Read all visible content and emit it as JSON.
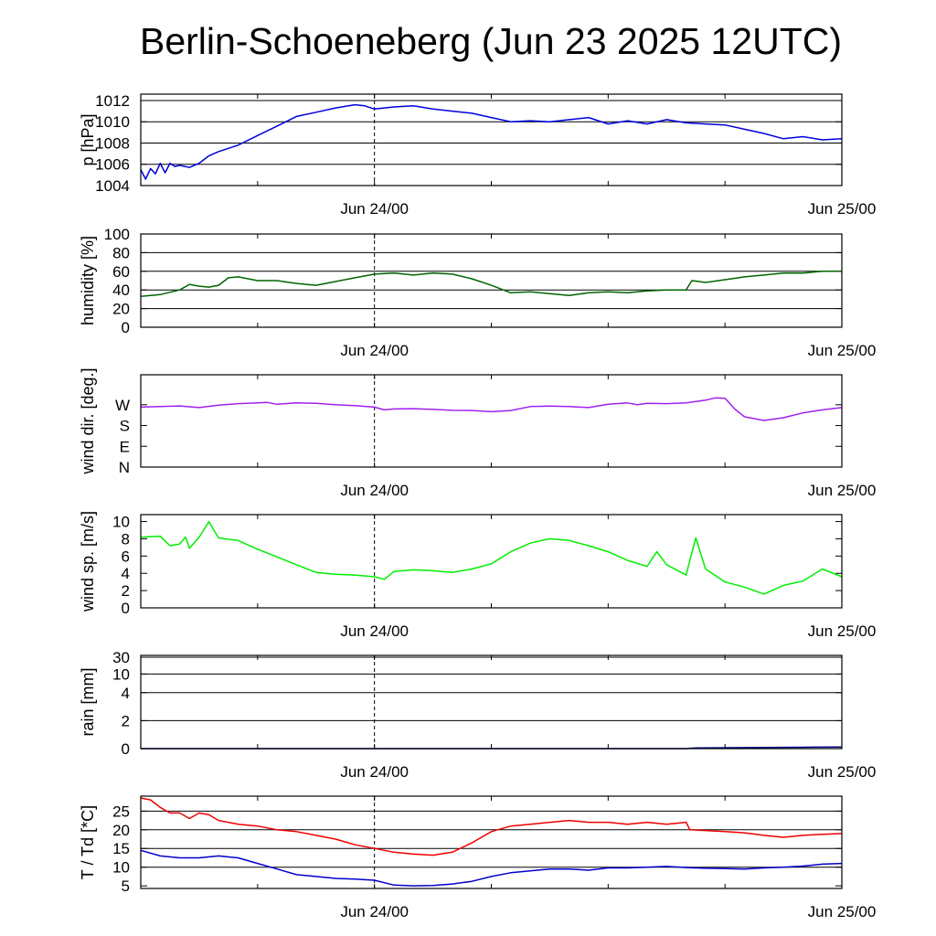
{
  "title": "Berlin-Schoeneberg (Jun 23 2025 12UTC)",
  "chart_data": [
    {
      "type": "line",
      "ylabel": "p [hPa]",
      "ylim": [
        1004,
        1012.6
      ],
      "yticks": [
        1004,
        1006,
        1008,
        1010,
        1012
      ],
      "ytick_labels": [
        "1004",
        "1006",
        "1008",
        "1010",
        "1012"
      ],
      "gridlines": [
        1006,
        1008,
        1010,
        1012
      ],
      "xlim": [
        0,
        36
      ],
      "xtick_labels": [
        {
          "x": 12,
          "label": "Jun 24/00"
        },
        {
          "x": 36,
          "label": "Jun 25/00"
        }
      ],
      "grid": true,
      "series": [
        {
          "color": "#0000dd",
          "x": [
            0,
            0.25,
            0.5,
            0.75,
            1,
            1.25,
            1.5,
            1.75,
            2,
            2.5,
            3,
            3.5,
            4,
            4.5,
            5,
            6,
            7,
            8,
            9,
            10,
            11,
            11.5,
            12,
            12.5,
            13,
            14,
            15,
            16,
            17,
            18,
            19,
            20,
            21,
            22,
            23,
            24,
            25,
            26,
            27,
            28,
            29,
            30,
            31,
            32,
            33,
            34,
            35,
            36
          ],
          "y": [
            1005.5,
            1004.6,
            1005.6,
            1005.1,
            1006.1,
            1005.2,
            1006.1,
            1005.8,
            1005.9,
            1005.7,
            1006.1,
            1006.8,
            1007.2,
            1007.5,
            1007.8,
            1008.7,
            1009.6,
            1010.5,
            1010.9,
            1011.3,
            1011.6,
            1011.5,
            1011.2,
            1011.3,
            1011.4,
            1011.5,
            1011.2,
            1011.0,
            1010.8,
            1010.4,
            1010.0,
            1010.1,
            1010.0,
            1010.2,
            1010.4,
            1009.8,
            1010.1,
            1009.8,
            1010.2,
            1009.9,
            1009.8,
            1009.7,
            1009.3,
            1008.9,
            1008.4,
            1008.6,
            1008.3,
            1008.4
          ]
        }
      ]
    },
    {
      "type": "line",
      "ylabel": "humidity [%]",
      "ylim": [
        0,
        100
      ],
      "yticks": [
        0,
        20,
        40,
        60,
        80,
        100
      ],
      "ytick_labels": [
        "0",
        "20",
        "40",
        "60",
        "80",
        "100"
      ],
      "gridlines": [
        20,
        40,
        60,
        80
      ],
      "xlim": [
        0,
        36
      ],
      "xtick_labels": [
        {
          "x": 12,
          "label": "Jun 24/00"
        },
        {
          "x": 36,
          "label": "Jun 25/00"
        }
      ],
      "grid": true,
      "series": [
        {
          "color": "#006400",
          "x": [
            0,
            1,
            2,
            2.5,
            3,
            3.5,
            4,
            4.5,
            5,
            6,
            7,
            8,
            9,
            10,
            11,
            12,
            13,
            14,
            15,
            16,
            17,
            18,
            19,
            20,
            21,
            22,
            23,
            24,
            25,
            26,
            27,
            28,
            28.3,
            29,
            30,
            31,
            32,
            33,
            34,
            35,
            36
          ],
          "y": [
            33,
            35,
            40,
            46,
            44,
            43,
            45,
            53,
            54,
            50,
            50,
            47,
            45,
            49,
            53,
            57,
            58,
            56,
            58,
            57,
            52,
            45,
            37,
            38,
            36,
            34,
            37,
            38,
            37,
            39,
            40,
            40,
            50,
            48,
            51,
            54,
            56,
            58,
            58,
            60,
            60
          ]
        }
      ]
    },
    {
      "type": "line",
      "ylabel": "wind dir. [deg.]",
      "ylim": [
        0,
        400
      ],
      "yticks": [
        0,
        90,
        180,
        270
      ],
      "ytick_labels": [
        "N",
        "E",
        "S",
        "W"
      ],
      "gridlines": [],
      "xlim": [
        0,
        36
      ],
      "xtick_labels": [
        {
          "x": 12,
          "label": "Jun 24/00"
        },
        {
          "x": 36,
          "label": "Jun 25/00"
        }
      ],
      "grid": false,
      "series": [
        {
          "color": "#a020f0",
          "x": [
            0,
            1,
            2,
            3,
            4,
            5,
            6,
            6.5,
            7,
            8,
            9,
            10,
            11,
            12,
            12.5,
            13,
            14,
            15,
            16,
            17,
            18,
            19,
            20,
            21,
            22,
            23,
            24,
            25,
            25.5,
            26,
            27,
            28,
            29,
            29.5,
            30,
            30.5,
            31,
            32,
            33,
            34,
            35,
            36
          ],
          "y": [
            260,
            262,
            265,
            258,
            268,
            275,
            278,
            280,
            272,
            278,
            276,
            270,
            266,
            260,
            248,
            252,
            253,
            250,
            246,
            245,
            240,
            245,
            262,
            264,
            262,
            258,
            272,
            278,
            270,
            276,
            275,
            278,
            290,
            300,
            298,
            252,
            218,
            202,
            214,
            235,
            248,
            258
          ]
        }
      ]
    },
    {
      "type": "line",
      "ylabel": "wind sp. [m/s]",
      "ylim": [
        0,
        10.8
      ],
      "yticks": [
        0,
        2,
        4,
        6,
        8,
        10
      ],
      "ytick_labels": [
        "0",
        "2",
        "4",
        "6",
        "8",
        "10"
      ],
      "gridlines": [],
      "xlim": [
        0,
        36
      ],
      "xtick_labels": [
        {
          "x": 12,
          "label": "Jun 24/00"
        },
        {
          "x": 36,
          "label": "Jun 25/00"
        }
      ],
      "grid": false,
      "series": [
        {
          "color": "#00ee00",
          "x": [
            0,
            1,
            1.5,
            2,
            2.3,
            2.5,
            3,
            3.5,
            3.7,
            4,
            5,
            6,
            7,
            8,
            9,
            10,
            11,
            12,
            12.5,
            13,
            14,
            15,
            16,
            17,
            18,
            19,
            20,
            21,
            22,
            23,
            24,
            25,
            26,
            26.5,
            27,
            28,
            28.5,
            29,
            30,
            31,
            32,
            33,
            34,
            35,
            36
          ],
          "y": [
            8.2,
            8.3,
            7.2,
            7.4,
            8.2,
            6.9,
            8.2,
            10,
            9.2,
            8.1,
            7.8,
            6.8,
            5.9,
            5.0,
            4.1,
            3.9,
            3.8,
            3.6,
            3.3,
            4.2,
            4.4,
            4.3,
            4.1,
            4.5,
            5.1,
            6.5,
            7.5,
            8.0,
            7.8,
            7.2,
            6.5,
            5.5,
            4.8,
            6.5,
            5.0,
            3.8,
            8.1,
            4.5,
            3.0,
            2.4,
            1.6,
            2.6,
            3.1,
            4.5,
            3.6
          ]
        }
      ]
    },
    {
      "type": "line",
      "ylabel": "rain [mm]",
      "ylim": [
        0,
        30
      ],
      "yticks": [
        0,
        2,
        4,
        10,
        30
      ],
      "ytick_labels": [
        "0",
        "2",
        "4",
        "10",
        "30"
      ],
      "gridlines": [
        2,
        4,
        10,
        30
      ],
      "xlim": [
        0,
        36
      ],
      "xtick_labels": [
        {
          "x": 12,
          "label": "Jun 24/00"
        },
        {
          "x": 36,
          "label": "Jun 25/00"
        }
      ],
      "grid": true,
      "series": [
        {
          "color": "#00008b",
          "x": [
            0,
            28,
            28.5,
            32,
            34,
            36
          ],
          "y": [
            0,
            0,
            0.05,
            0.08,
            0.1,
            0.12
          ]
        }
      ]
    },
    {
      "type": "line",
      "ylabel": "T / Td [*C]",
      "ylim": [
        4.3,
        29
      ],
      "yticks": [
        5,
        10,
        15,
        20,
        25
      ],
      "ytick_labels": [
        "5",
        "10",
        "15",
        "20",
        "25"
      ],
      "gridlines": [
        10,
        15,
        20,
        25
      ],
      "xlim": [
        0,
        36
      ],
      "xtick_labels": [
        {
          "x": 12,
          "label": "Jun 24/00"
        },
        {
          "x": 36,
          "label": "Jun 25/00"
        }
      ],
      "grid": true,
      "series": [
        {
          "color": "#ee0000",
          "x": [
            0,
            0.5,
            1,
            1.5,
            2,
            2.5,
            3,
            3.5,
            4,
            5,
            6,
            7,
            8,
            9,
            10,
            11,
            12,
            13,
            14,
            15,
            16,
            17,
            18,
            19,
            20,
            21,
            22,
            23,
            24,
            25,
            26,
            27,
            28,
            28.2,
            29,
            30,
            31,
            32,
            33,
            34,
            35,
            36
          ],
          "y": [
            28.5,
            28,
            26,
            24.5,
            24.5,
            23,
            24.5,
            24,
            22.5,
            21.5,
            21,
            20,
            19.5,
            18.5,
            17.5,
            16,
            15,
            14,
            13.5,
            13.2,
            14,
            16.5,
            19.5,
            21,
            21.5,
            22,
            22.5,
            22,
            22,
            21.5,
            22,
            21.5,
            22,
            20,
            19.8,
            19.5,
            19.2,
            18.5,
            18,
            18.5,
            18.8,
            19
          ]
        },
        {
          "color": "#0000cc",
          "x": [
            0,
            1,
            2,
            3,
            4,
            5,
            6,
            7,
            8,
            9,
            10,
            11,
            12,
            13,
            14,
            15,
            16,
            17,
            18,
            19,
            20,
            21,
            22,
            23,
            24,
            25,
            26,
            27,
            28,
            29,
            30,
            31,
            32,
            33,
            34,
            35,
            36
          ],
          "y": [
            14.5,
            13,
            12.5,
            12.5,
            13,
            12.5,
            11,
            9.5,
            8,
            7.5,
            7,
            6.8,
            6.5,
            5.2,
            5,
            5.1,
            5.5,
            6.2,
            7.5,
            8.5,
            9,
            9.5,
            9.5,
            9.2,
            9.8,
            9.8,
            10,
            10.2,
            9.9,
            9.7,
            9.6,
            9.5,
            9.8,
            10,
            10.3,
            10.8,
            11
          ]
        }
      ]
    }
  ]
}
